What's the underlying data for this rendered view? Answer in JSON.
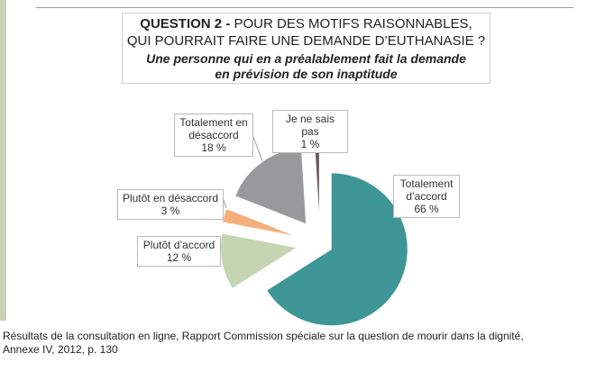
{
  "title": {
    "question_label": "QUESTION 2 -",
    "line1_rest": "POUR DES MOTIFS RAISONNABLES,",
    "line2": "QUI POURRAIT FAIRE UNE DEMANDE D’EUTHANASIE ?",
    "subtitle_line1": "Une personne qui en a préalablement fait la demande",
    "subtitle_line2": "en prévision de son inaptitude"
  },
  "chart_data": {
    "type": "pie",
    "slices": [
      {
        "label_lines": [
          "Totalement",
          "d’accord"
        ],
        "value_text": "66 %",
        "value": 66,
        "color": "#3f9696"
      },
      {
        "label_lines": [
          "Plutôt d’accord"
        ],
        "value_text": "12 %",
        "value": 12,
        "color": "#c5d4b1"
      },
      {
        "label_lines": [
          "Plutôt en désaccord"
        ],
        "value_text": "3 %",
        "value": 3,
        "color": "#f4b07c"
      },
      {
        "label_lines": [
          "Totalement en",
          "désaccord"
        ],
        "value_text": "18 %",
        "value": 18,
        "color": "#97999b"
      },
      {
        "label_lines": [
          "Je ne sais pas"
        ],
        "value_text": "1 %",
        "value": 1,
        "color": "#6a5a66"
      }
    ]
  },
  "caption": {
    "line1": "Résultats de la consultation en ligne, Rapport Commission spéciale sur la question de mourir dans la dignité,",
    "line2": "Annexe IV, 2012,  p. 130"
  }
}
